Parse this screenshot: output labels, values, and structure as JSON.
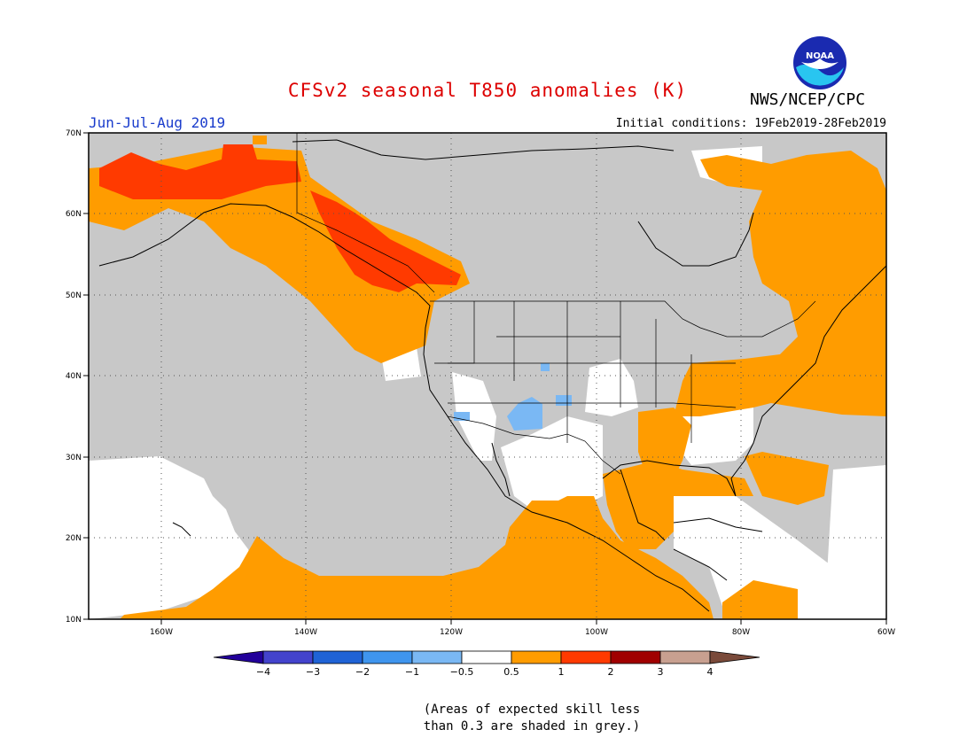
{
  "header": {
    "title": "CFSv2 seasonal T850 anomalies (K)",
    "title_color": "#dd0000",
    "agency": "NWS/NCEP/CPC",
    "season": "Jun-Jul-Aug 2019",
    "season_color": "#1a3ccc",
    "initial_conditions": "Initial conditions: 19Feb2019-28Feb2019"
  },
  "map": {
    "lon_range": [
      -170,
      -60
    ],
    "lat_range": [
      10,
      70
    ],
    "lon_ticks": [
      "160W",
      "140W",
      "120W",
      "100W",
      "80W",
      "60W"
    ],
    "lat_ticks": [
      "10N",
      "20N",
      "30N",
      "40N",
      "50N",
      "60N",
      "70N"
    ],
    "grid": "dotted",
    "no_skill_color": "#c8c8c8",
    "neutral_color": "#ffffff"
  },
  "colorbar": {
    "labels": [
      "−4",
      "−3",
      "−2",
      "−1",
      "−0.5",
      "0.5",
      "1",
      "2",
      "3",
      "4"
    ],
    "colors": [
      "#22009a",
      "#4343cc",
      "#1f63d6",
      "#3f95ee",
      "#7ab8f4",
      "#ffffff",
      "#ff9c00",
      "#ff3a00",
      "#a00000",
      "#c8a090",
      "#7a4a3a"
    ]
  },
  "note": {
    "line1": "(Areas of expected skill less",
    "line2": "than 0.3 are shaded in grey.)"
  }
}
